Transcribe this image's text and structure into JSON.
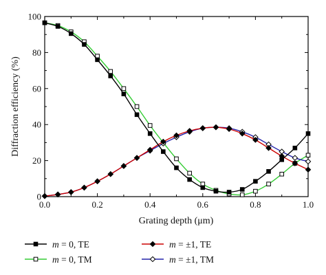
{
  "chart_data": {
    "type": "line",
    "xlabel": "Grating depth (μm)",
    "ylabel": "Diffraction efficiency (%)",
    "xlim": [
      0.0,
      1.0
    ],
    "ylim": [
      0,
      100
    ],
    "x_ticks": [
      "0.0",
      "0.2",
      "0.4",
      "0.6",
      "0.8",
      "1.0"
    ],
    "y_ticks": [
      "0",
      "20",
      "40",
      "60",
      "80",
      "100"
    ],
    "grid": false,
    "legend_position": "bottom",
    "x": [
      0.0,
      0.05,
      0.1,
      0.15,
      0.2,
      0.25,
      0.3,
      0.35,
      0.4,
      0.45,
      0.5,
      0.55,
      0.6,
      0.65,
      0.7,
      0.75,
      0.8,
      0.85,
      0.9,
      0.95,
      1.0
    ],
    "series": [
      {
        "name": "m = 0, TE",
        "line_color": "#000000",
        "marker": "filled-square",
        "values": [
          96.5,
          94.5,
          90.5,
          84.5,
          76.0,
          67.0,
          57.0,
          45.5,
          35.0,
          25.0,
          16.0,
          9.5,
          5.0,
          3.0,
          2.5,
          4.0,
          8.5,
          14.0,
          20.5,
          27.0,
          35.0
        ]
      },
      {
        "name": "m = 0, TM",
        "line_color": "#33cc33",
        "marker": "open-square",
        "values": [
          96.5,
          95.0,
          91.5,
          86.0,
          78.0,
          69.5,
          60.0,
          50.0,
          39.5,
          30.0,
          21.0,
          13.0,
          7.0,
          3.5,
          1.5,
          1.0,
          3.0,
          7.0,
          12.5,
          18.5,
          23.0
        ]
      },
      {
        "name": "m = ±1, TE",
        "line_color": "#cc0000",
        "marker": "filled-diamond",
        "values": [
          0.3,
          1.2,
          2.5,
          5.0,
          8.5,
          12.5,
          17.0,
          21.5,
          26.0,
          30.5,
          34.0,
          36.5,
          38.0,
          38.5,
          37.5,
          35.0,
          31.5,
          27.0,
          22.5,
          18.5,
          15.0
        ]
      },
      {
        "name": "m = ±1, TM",
        "line_color": "#2222aa",
        "marker": "open-diamond",
        "values": [
          0.3,
          1.2,
          2.5,
          5.0,
          8.5,
          12.5,
          17.0,
          21.5,
          25.5,
          29.5,
          33.0,
          36.0,
          38.0,
          38.5,
          38.0,
          36.0,
          33.0,
          29.0,
          25.0,
          21.5,
          19.5
        ]
      }
    ]
  }
}
